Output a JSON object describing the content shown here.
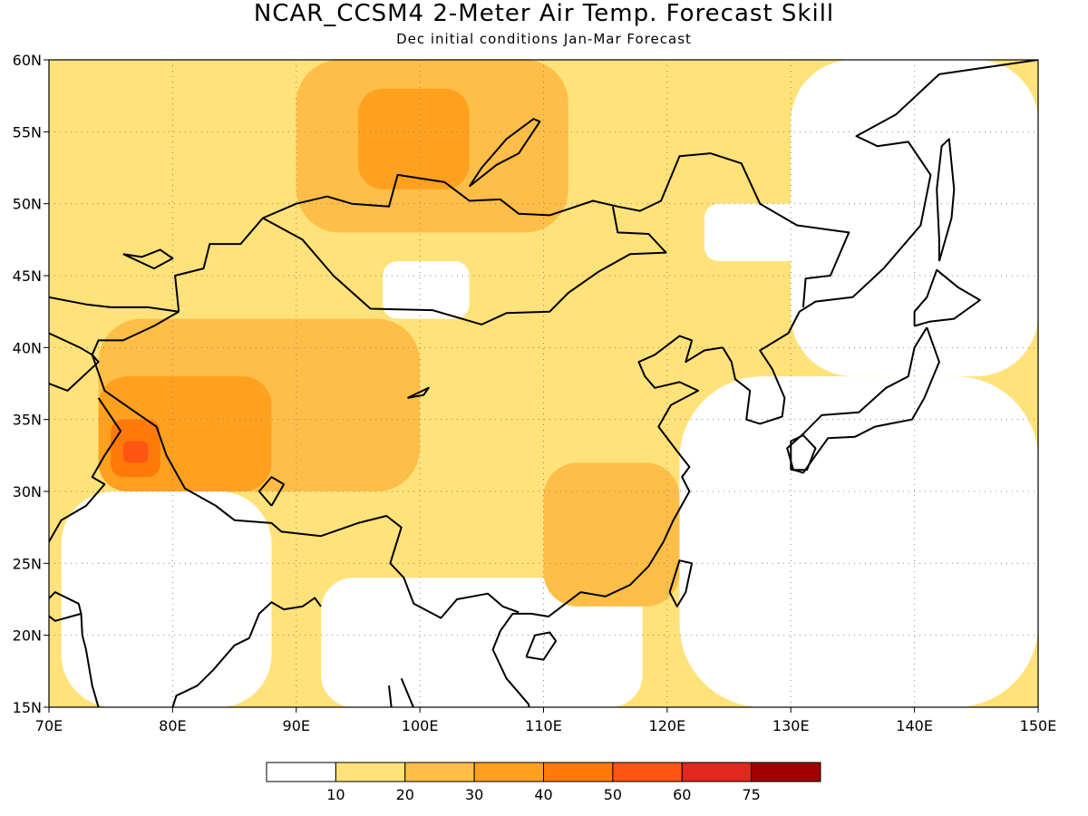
{
  "title": "NCAR_CCSM4 2-Meter Air Temp. Forecast Skill",
  "subtitle": "Dec initial conditions  Jan-Mar Forecast",
  "map": {
    "lon_range": [
      70,
      150
    ],
    "lat_range": [
      15,
      60
    ],
    "x_ticks": [
      "70E",
      "80E",
      "90E",
      "100E",
      "110E",
      "120E",
      "130E",
      "140E",
      "150E"
    ],
    "y_ticks": [
      "60N",
      "55N",
      "50N",
      "45N",
      "40N",
      "35N",
      "30N",
      "25N",
      "20N",
      "15N"
    ],
    "grid": "dotted",
    "coastlines": true
  },
  "colorbar": {
    "labels": [
      "10",
      "20",
      "30",
      "40",
      "50",
      "60",
      "75"
    ],
    "colors": [
      "#ffffff",
      "#ffe27a",
      "#ffbe48",
      "#ffa01e",
      "#ff7a0a",
      "#ff5514",
      "#e0281e",
      "#a00000"
    ]
  },
  "skill_regions": [
    {
      "level": 1,
      "lon": [
        70,
        150
      ],
      "lat": [
        15,
        60
      ],
      "name": "base"
    },
    {
      "level": 0,
      "lon": [
        92,
        118
      ],
      "lat": [
        15,
        24
      ],
      "name": "south-white"
    },
    {
      "level": 0,
      "lon": [
        121,
        150
      ],
      "lat": [
        15,
        38
      ],
      "name": "sea-white"
    },
    {
      "level": 0,
      "lon": [
        71,
        88
      ],
      "lat": [
        15,
        30
      ],
      "name": "india-white"
    },
    {
      "level": 0,
      "lon": [
        97,
        104
      ],
      "lat": [
        42,
        46
      ],
      "name": "gobi-white"
    },
    {
      "level": 0,
      "lon": [
        123,
        132
      ],
      "lat": [
        46,
        50
      ],
      "name": "ne-white"
    },
    {
      "level": 0,
      "lon": [
        130,
        150
      ],
      "lat": [
        38,
        60
      ],
      "name": "far-east-white"
    },
    {
      "level": 2,
      "lon": [
        90,
        112
      ],
      "lat": [
        48,
        60
      ],
      "name": "siberia-orange"
    },
    {
      "level": 2,
      "lon": [
        74,
        100
      ],
      "lat": [
        30,
        42
      ],
      "name": "tibet-orange"
    },
    {
      "level": 2,
      "lon": [
        110,
        121
      ],
      "lat": [
        22,
        32
      ],
      "name": "se-china-orange"
    },
    {
      "level": 3,
      "lon": [
        95,
        104
      ],
      "lat": [
        51,
        58
      ],
      "name": "siberia-core"
    },
    {
      "level": 3,
      "lon": [
        74,
        88
      ],
      "lat": [
        30,
        38
      ],
      "name": "west-tibet"
    },
    {
      "level": 4,
      "lon": [
        75,
        79
      ],
      "lat": [
        31,
        35
      ],
      "name": "kashmir-red"
    },
    {
      "level": 5,
      "lon": [
        76,
        78
      ],
      "lat": [
        32,
        33.5
      ],
      "name": "kashmir-core"
    }
  ]
}
